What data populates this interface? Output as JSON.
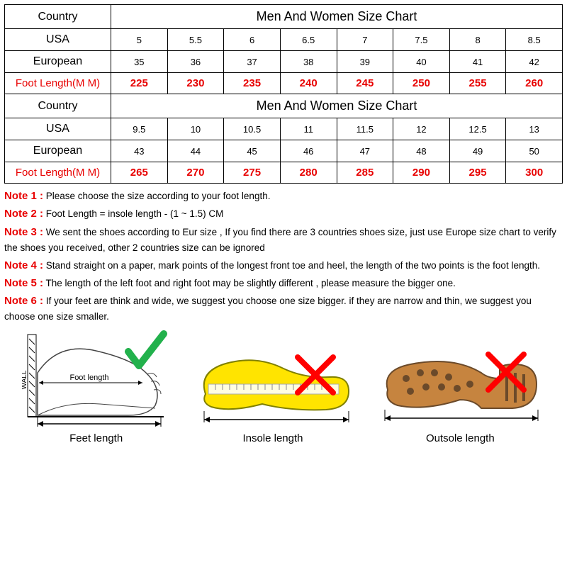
{
  "colors": {
    "red": "#e80000",
    "black": "#000000",
    "border": "#000000",
    "check_green": "#22b14c",
    "cross_red": "#ff0000",
    "insole_yellow": "#ffe400",
    "insole_outline": "#808000",
    "sole_brown": "#c6843f",
    "sole_dark": "#6b4a2a",
    "foot_line": "#444444"
  },
  "table1": {
    "country_label": "Country",
    "title": "Men And Women Size Chart",
    "usa_label": "USA",
    "eur_label": "European",
    "foot_label": "Foot Length(M M)",
    "usa": [
      "5",
      "5.5",
      "6",
      "6.5",
      "7",
      "7.5",
      "8",
      "8.5"
    ],
    "eur": [
      "35",
      "36",
      "37",
      "38",
      "39",
      "40",
      "41",
      "42"
    ],
    "foot": [
      "225",
      "230",
      "235",
      "240",
      "245",
      "250",
      "255",
      "260"
    ]
  },
  "table2": {
    "country_label": "Country",
    "title": "Men And Women Size Chart",
    "usa_label": "USA",
    "eur_label": "European",
    "foot_label": "Foot Length(M M)",
    "usa": [
      "9.5",
      "10",
      "10.5",
      "11",
      "11.5",
      "12",
      "12.5",
      "13"
    ],
    "eur": [
      "43",
      "44",
      "45",
      "46",
      "47",
      "48",
      "49",
      "50"
    ],
    "foot": [
      "265",
      "270",
      "275",
      "280",
      "285",
      "290",
      "295",
      "300"
    ]
  },
  "notes": [
    {
      "label": "Note 1 :",
      "text": " Please choose the size according to your foot length."
    },
    {
      "label": "Note 2 :",
      "text": " Foot Length = insole length  -  (1 ~ 1.5) CM"
    },
    {
      "label": "Note 3 :",
      "text": "   We sent the shoes according to Eur size , If you find there are 3 countries shoes size, just use Europe size chart to verify the shoes you received, other 2 countries size can be ignored"
    },
    {
      "label": "Note 4 :",
      "text": "   Stand straight on a paper, mark points of the longest front toe and heel, the length of the two points is the foot length."
    },
    {
      "label": "Note 5 :",
      "text": " The length of the left foot and right foot may be slightly different , please measure the bigger one."
    },
    {
      "label": "Note 6 :",
      "text": " If your feet are think and wide, we suggest you choose one size bigger. if they are narrow and thin, we suggest you choose one size smaller."
    }
  ],
  "diagram": {
    "wall_label": "WALL",
    "foot_label": "Foot length",
    "feet_caption": "Feet length",
    "insole_caption": "Insole length",
    "outsole_caption": "Outsole length"
  }
}
